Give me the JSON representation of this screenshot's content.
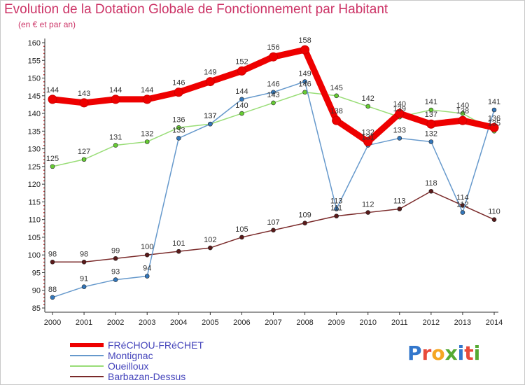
{
  "title": "Evolution de la Dotation Globale de Fonctionnement par Habitant",
  "subtitle": "(en € et par an)",
  "logo": {
    "text": "Proxiti",
    "colors": [
      "#3377cc",
      "#e84a3a",
      "#f5a623",
      "#55aa33",
      "#3377cc",
      "#e84a3a",
      "#55aa33"
    ]
  },
  "chart_data": {
    "type": "line",
    "title": "Evolution de la Dotation Globale de Fonctionnement par Habitant",
    "ylabel": "(en € et par an)",
    "xlabel": "",
    "ylim": [
      85,
      160
    ],
    "yticks": [
      85,
      90,
      95,
      100,
      105,
      110,
      115,
      120,
      125,
      130,
      135,
      140,
      145,
      150,
      155,
      160
    ],
    "grid": false,
    "categories": [
      "2000",
      "2001",
      "2002",
      "2003",
      "2004",
      "2005",
      "2006",
      "2007",
      "2008",
      "2009",
      "2010",
      "2011",
      "2012",
      "2013",
      "2014"
    ],
    "series": [
      {
        "name": "Barbazan-Dessus",
        "color": "#7a2a2a",
        "marker": "#5a1a1a",
        "width": "thin",
        "values": [
          98,
          98,
          99,
          100,
          101,
          102,
          105,
          107,
          109,
          111,
          112,
          113,
          118,
          114,
          110
        ]
      },
      {
        "name": "Oueilloux",
        "color": "#99dd77",
        "marker": "#66cc33",
        "width": "thin",
        "values": [
          125,
          127,
          131,
          132,
          136,
          137,
          140,
          143,
          146,
          145,
          142,
          139,
          141,
          140,
          135
        ]
      },
      {
        "name": "Montignac",
        "color": "#6699cc",
        "marker": "#3377bb",
        "width": "thin",
        "values": [
          88,
          91,
          93,
          94,
          133,
          137,
          144,
          146,
          149,
          113,
          131,
          133,
          132,
          112,
          141
        ]
      },
      {
        "name": "FRéCHOU-FRéCHET",
        "color": "#ee0000",
        "marker": "#ee0000",
        "width": "thick",
        "values": [
          144,
          143,
          144,
          144,
          146,
          149,
          152,
          156,
          158,
          138,
          132,
          140,
          137,
          138,
          136
        ]
      }
    ]
  },
  "legend": [
    {
      "name": "FRéCHOU-FRéCHET",
      "color": "#ee0000",
      "thick": true
    },
    {
      "name": "Montignac",
      "color": "#6699cc",
      "thick": false
    },
    {
      "name": "Oueilloux",
      "color": "#99dd77",
      "thick": false
    },
    {
      "name": "Barbazan-Dessus",
      "color": "#7a2a2a",
      "thick": false
    }
  ]
}
